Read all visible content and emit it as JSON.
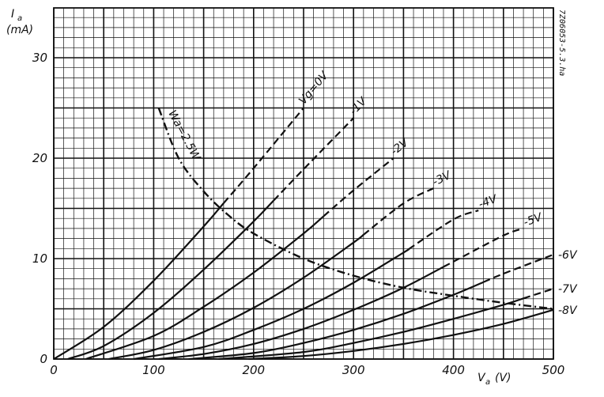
{
  "chart_data": {
    "type": "line",
    "xlabel": "V_a (V)",
    "ylabel": "I_a (mA)",
    "xlim": [
      0,
      500
    ],
    "ylim": [
      0,
      35
    ],
    "x_ticks": [
      "0",
      "100",
      "200",
      "300",
      "400",
      "500"
    ],
    "y_ticks": [
      "0",
      "10",
      "20",
      "30"
    ],
    "grid": true,
    "doc_code": "7Z06053-5.3.ha",
    "series": [
      {
        "name": "Vg=0V",
        "x": [
          0,
          50,
          100,
          150,
          200,
          250
        ],
        "y": [
          0,
          3.2,
          7.8,
          13.2,
          19.0,
          25.0
        ],
        "dashed_from": 170
      },
      {
        "name": "-1V",
        "x": [
          14,
          50,
          100,
          150,
          200,
          250,
          300
        ],
        "y": [
          0,
          1.3,
          4.6,
          8.9,
          13.7,
          18.9,
          24.0
        ],
        "dashed_from": 220
      },
      {
        "name": "-2V",
        "x": [
          32,
          100,
          150,
          200,
          250,
          300,
          340
        ],
        "y": [
          0,
          2.3,
          5.2,
          8.6,
          12.5,
          16.8,
          20.0
        ],
        "dashed_from": 270
      },
      {
        "name": "-3V",
        "x": [
          55,
          100,
          150,
          200,
          250,
          300,
          350,
          380
        ],
        "y": [
          0,
          0.9,
          2.7,
          5.1,
          8.1,
          11.6,
          15.5,
          17.0
        ],
        "dashed_from": 310
      },
      {
        "name": "-4V",
        "x": [
          80,
          150,
          200,
          250,
          300,
          350,
          400,
          425
        ],
        "y": [
          0,
          1.2,
          2.9,
          5.0,
          7.6,
          10.6,
          13.9,
          14.8
        ],
        "dashed_from": 355
      },
      {
        "name": "-5V",
        "x": [
          105,
          150,
          200,
          250,
          300,
          350,
          400,
          450,
          470
        ],
        "y": [
          0,
          0.5,
          1.5,
          3.0,
          4.9,
          7.1,
          9.7,
          12.3,
          13.0
        ],
        "dashed_from": 390
      },
      {
        "name": "-6V",
        "x": [
          135,
          200,
          250,
          300,
          350,
          400,
          450,
          500
        ],
        "y": [
          0,
          0.6,
          1.6,
          2.9,
          4.5,
          6.4,
          8.5,
          10.4
        ],
        "dashed_from": 430
      },
      {
        "name": "-7V",
        "x": [
          165,
          250,
          300,
          350,
          400,
          450,
          500
        ],
        "y": [
          0,
          0.7,
          1.6,
          2.7,
          4.0,
          5.4,
          7.0
        ],
        "dashed_from": 470
      },
      {
        "name": "-8V",
        "x": [
          195,
          250,
          300,
          350,
          400,
          450,
          500
        ],
        "y": [
          0,
          0.3,
          0.8,
          1.5,
          2.4,
          3.5,
          4.9
        ],
        "dashed_from": 600
      }
    ],
    "annotations": [
      {
        "label": "Wa=2.5W",
        "x": [
          105,
          125,
          150,
          175,
          200,
          250,
          300,
          350,
          400,
          450,
          500
        ],
        "y": [
          25.0,
          20.0,
          16.7,
          14.3,
          12.5,
          10.0,
          8.3,
          7.1,
          6.3,
          5.6,
          5.0
        ]
      }
    ]
  }
}
